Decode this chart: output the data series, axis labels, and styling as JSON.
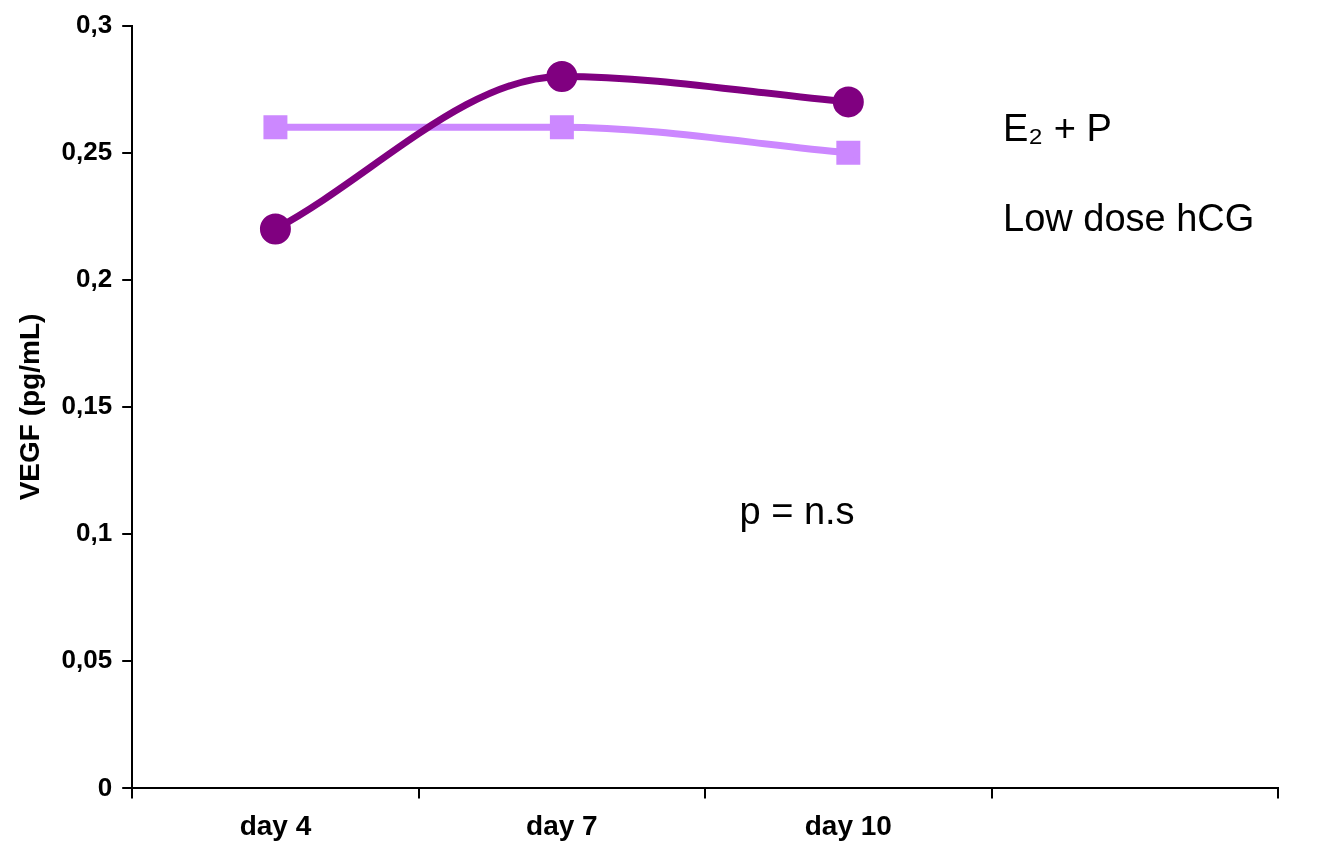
{
  "chart_data": {
    "type": "line",
    "categories": [
      "day 4",
      "day 7",
      "day 10",
      null
    ],
    "ylabel": "VEGF (pg/mL)",
    "series": [
      {
        "name": "E₂ + P",
        "color": "#800080",
        "marker": "circle",
        "values": [
          0.22,
          0.28,
          0.27,
          null
        ]
      },
      {
        "name": "Low dose hCG",
        "color": "#cc88ff",
        "marker": "square",
        "values": [
          0.26,
          0.26,
          0.25,
          null
        ]
      }
    ],
    "ylim": [
      0,
      0.3
    ],
    "yticks": [
      {
        "value": 0,
        "label": "0"
      },
      {
        "value": 0.05,
        "label": "0,05"
      },
      {
        "value": 0.1,
        "label": "0,1"
      },
      {
        "value": 0.15,
        "label": "0,15"
      },
      {
        "value": 0.2,
        "label": "0,2"
      },
      {
        "value": 0.25,
        "label": "0,25"
      },
      {
        "value": 0.3,
        "label": "0,3"
      }
    ],
    "annotations": [
      "p = n.s"
    ],
    "grid": false,
    "legend": "top right"
  }
}
